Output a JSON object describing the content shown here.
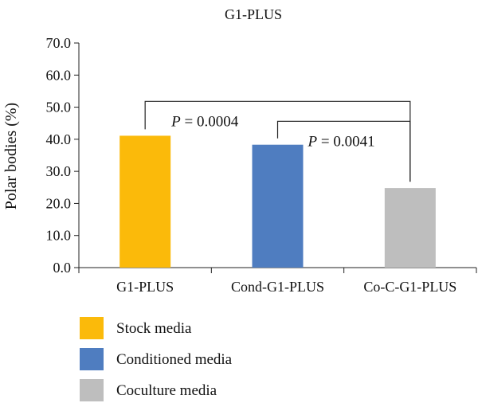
{
  "chart_data": {
    "type": "bar",
    "title": "G1-PLUS",
    "xlabel": "",
    "ylabel": "Polar bodies (%)",
    "ylim": [
      0,
      70
    ],
    "yticks": [
      "0.0",
      "10.0",
      "20.0",
      "30.0",
      "40.0",
      "50.0",
      "60.0",
      "70.0"
    ],
    "categories": [
      "G1-PLUS",
      "Cond-G1-PLUS",
      "Co-C-G1-PLUS"
    ],
    "values": [
      41.1,
      38.3,
      24.8
    ],
    "colors": [
      "#FBBA0A",
      "#4F7DC0",
      "#BEBEBE"
    ],
    "legend": {
      "placement": "bottom-left",
      "entries": [
        {
          "label": "Stock media",
          "color": "#FBBA0A"
        },
        {
          "label": "Conditioned media",
          "color": "#4F7DC0"
        },
        {
          "label": "Coculture media",
          "color": "#BEBEBE"
        }
      ]
    },
    "annotations": [
      {
        "from": "G1-PLUS",
        "to": "Co-C-G1-PLUS",
        "p_italic": "P",
        "p_value": " = 0.0004"
      },
      {
        "from": "Cond-G1-PLUS",
        "to": "Co-C-G1-PLUS",
        "p_italic": "P",
        "p_value": " = 0.0041"
      }
    ],
    "grid": false
  }
}
